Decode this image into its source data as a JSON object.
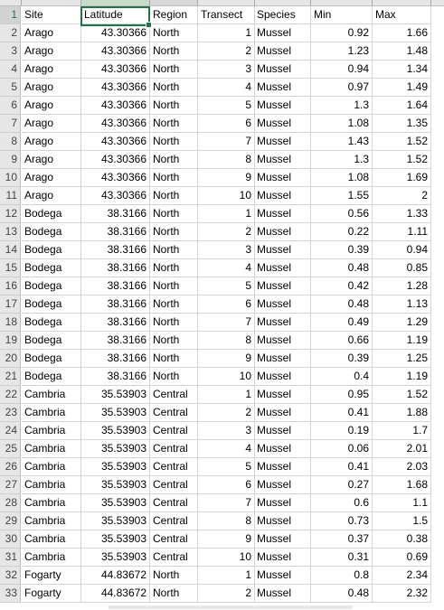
{
  "sheet": {
    "headers": [
      "Site",
      "Latitude",
      "Region",
      "Transect",
      "Species",
      "Min",
      "Max"
    ],
    "row_numbers": [
      "1",
      "2",
      "3",
      "4",
      "5",
      "6",
      "7",
      "8",
      "9",
      "10",
      "11",
      "12",
      "13",
      "14",
      "15",
      "16",
      "17",
      "18",
      "19",
      "20",
      "21",
      "22",
      "23",
      "24",
      "25",
      "26",
      "27",
      "28",
      "29",
      "30",
      "31",
      "32",
      "33"
    ],
    "rows": [
      [
        "Arago",
        "43.30366",
        "North",
        "1",
        "Mussel",
        "0.92",
        "1.66"
      ],
      [
        "Arago",
        "43.30366",
        "North",
        "2",
        "Mussel",
        "1.23",
        "1.48"
      ],
      [
        "Arago",
        "43.30366",
        "North",
        "3",
        "Mussel",
        "0.94",
        "1.34"
      ],
      [
        "Arago",
        "43.30366",
        "North",
        "4",
        "Mussel",
        "0.97",
        "1.49"
      ],
      [
        "Arago",
        "43.30366",
        "North",
        "5",
        "Mussel",
        "1.3",
        "1.64"
      ],
      [
        "Arago",
        "43.30366",
        "North",
        "6",
        "Mussel",
        "1.08",
        "1.35"
      ],
      [
        "Arago",
        "43.30366",
        "North",
        "7",
        "Mussel",
        "1.43",
        "1.52"
      ],
      [
        "Arago",
        "43.30366",
        "North",
        "8",
        "Mussel",
        "1.3",
        "1.52"
      ],
      [
        "Arago",
        "43.30366",
        "North",
        "9",
        "Mussel",
        "1.08",
        "1.69"
      ],
      [
        "Arago",
        "43.30366",
        "North",
        "10",
        "Mussel",
        "1.55",
        "2"
      ],
      [
        "Bodega",
        "38.3166",
        "North",
        "1",
        "Mussel",
        "0.56",
        "1.33"
      ],
      [
        "Bodega",
        "38.3166",
        "North",
        "2",
        "Mussel",
        "0.22",
        "1.11"
      ],
      [
        "Bodega",
        "38.3166",
        "North",
        "3",
        "Mussel",
        "0.39",
        "0.94"
      ],
      [
        "Bodega",
        "38.3166",
        "North",
        "4",
        "Mussel",
        "0.48",
        "0.85"
      ],
      [
        "Bodega",
        "38.3166",
        "North",
        "5",
        "Mussel",
        "0.42",
        "1.28"
      ],
      [
        "Bodega",
        "38.3166",
        "North",
        "6",
        "Mussel",
        "0.48",
        "1.13"
      ],
      [
        "Bodega",
        "38.3166",
        "North",
        "7",
        "Mussel",
        "0.49",
        "1.29"
      ],
      [
        "Bodega",
        "38.3166",
        "North",
        "8",
        "Mussel",
        "0.66",
        "1.19"
      ],
      [
        "Bodega",
        "38.3166",
        "North",
        "9",
        "Mussel",
        "0.39",
        "1.25"
      ],
      [
        "Bodega",
        "38.3166",
        "North",
        "10",
        "Mussel",
        "0.4",
        "1.19"
      ],
      [
        "Cambria",
        "35.53903",
        "Central",
        "1",
        "Mussel",
        "0.95",
        "1.52"
      ],
      [
        "Cambria",
        "35.53903",
        "Central",
        "2",
        "Mussel",
        "0.41",
        "1.88"
      ],
      [
        "Cambria",
        "35.53903",
        "Central",
        "3",
        "Mussel",
        "0.19",
        "1.7"
      ],
      [
        "Cambria",
        "35.53903",
        "Central",
        "4",
        "Mussel",
        "0.06",
        "2.01"
      ],
      [
        "Cambria",
        "35.53903",
        "Central",
        "5",
        "Mussel",
        "0.41",
        "2.03"
      ],
      [
        "Cambria",
        "35.53903",
        "Central",
        "6",
        "Mussel",
        "0.27",
        "1.68"
      ],
      [
        "Cambria",
        "35.53903",
        "Central",
        "7",
        "Mussel",
        "0.6",
        "1.1"
      ],
      [
        "Cambria",
        "35.53903",
        "Central",
        "8",
        "Mussel",
        "0.73",
        "1.5"
      ],
      [
        "Cambria",
        "35.53903",
        "Central",
        "9",
        "Mussel",
        "0.37",
        "0.38"
      ],
      [
        "Cambria",
        "35.53903",
        "Central",
        "10",
        "Mussel",
        "0.31",
        "0.69"
      ],
      [
        "Fogarty",
        "44.83672",
        "North",
        "1",
        "Mussel",
        "0.8",
        "2.34"
      ],
      [
        "Fogarty",
        "44.83672",
        "North",
        "2",
        "Mussel",
        "0.48",
        "2.32"
      ]
    ],
    "active_cell": "B1",
    "accent_color": "#217346"
  }
}
